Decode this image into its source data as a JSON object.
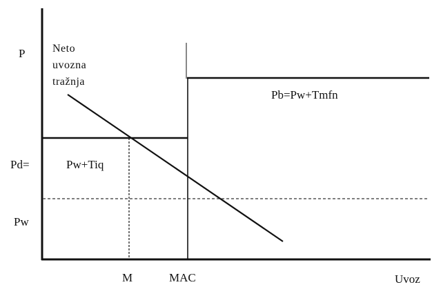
{
  "diagram": {
    "y_axis_labels": {
      "p": "P",
      "pd": "Pd=",
      "pw": "Pw"
    },
    "x_axis_labels": {
      "m": "M",
      "mac": "MAC",
      "uvoz": "Uvoz"
    },
    "curve_labels": {
      "demand_line1": "Neto",
      "demand_line2": "uvozna",
      "demand_line3": "tražnja",
      "pd_value": "Pw+Tiq",
      "pb": "Pb=Pw+Tmfn"
    },
    "colors": {
      "ink": "#111111",
      "thin": "#1a1a1a",
      "dashed": "#555555",
      "spike": "#888888"
    }
  }
}
